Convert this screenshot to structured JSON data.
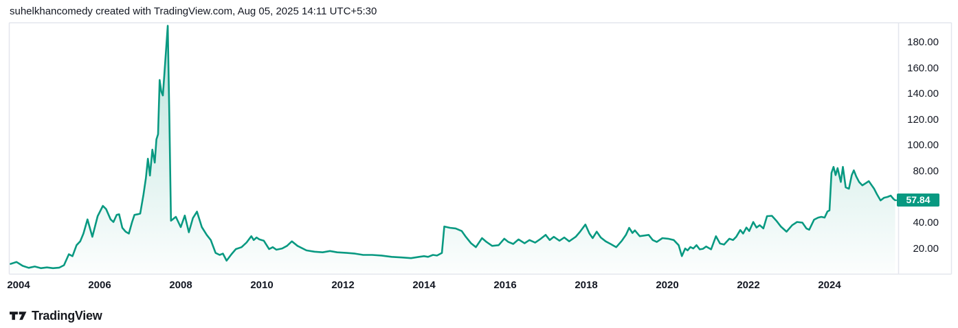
{
  "header": {
    "attribution": "suhelkhancomedy created with TradingView.com, Aug 05, 2025 14:11 UTC+5:30"
  },
  "footer": {
    "brand": "TradingView"
  },
  "chart_data": {
    "type": "area",
    "title": "",
    "xlabel": "",
    "ylabel": "",
    "grid": false,
    "legend_position": "none",
    "xlim": [
      2003.78,
      2025.73
    ],
    "ylim": [
      0,
      195
    ],
    "last_price": 57.84,
    "last_price_label": "57.84",
    "colors": {
      "line": "#089981",
      "badge": "#089981",
      "badge_text": "#ffffff",
      "area_top": "rgba(8,153,129,0.28)",
      "area_bottom": "rgba(8,153,129,0.01)",
      "text": "#131722",
      "border": "#e3e6ed"
    },
    "y_axis": {
      "ticks": [
        {
          "value": 180,
          "label": "180.00"
        },
        {
          "value": 160,
          "label": "160.00"
        },
        {
          "value": 140,
          "label": "140.00"
        },
        {
          "value": 120,
          "label": "120.00"
        },
        {
          "value": 100,
          "label": "100.00"
        },
        {
          "value": 80,
          "label": "80.00"
        },
        {
          "value": 40,
          "label": "40.00"
        },
        {
          "value": 20,
          "label": "20.00"
        }
      ]
    },
    "x_axis": {
      "ticks": [
        "2004",
        "2006",
        "2008",
        "2010",
        "2012",
        "2014",
        "2016",
        "2018",
        "2020",
        "2022",
        "2024"
      ]
    },
    "series": [
      {
        "name": "price",
        "points": [
          [
            2003.8,
            8.5
          ],
          [
            2003.95,
            10
          ],
          [
            2004.1,
            7
          ],
          [
            2004.25,
            5.5
          ],
          [
            2004.4,
            6.5
          ],
          [
            2004.55,
            5.2
          ],
          [
            2004.7,
            5.8
          ],
          [
            2004.85,
            5.2
          ],
          [
            2005.0,
            5.6
          ],
          [
            2005.12,
            7.5
          ],
          [
            2005.24,
            16
          ],
          [
            2005.33,
            14.5
          ],
          [
            2005.43,
            23
          ],
          [
            2005.52,
            26
          ],
          [
            2005.6,
            32
          ],
          [
            2005.7,
            43
          ],
          [
            2005.82,
            29.5
          ],
          [
            2005.95,
            45.5
          ],
          [
            2006.08,
            53.5
          ],
          [
            2006.16,
            51
          ],
          [
            2006.27,
            43
          ],
          [
            2006.34,
            41
          ],
          [
            2006.42,
            46.5
          ],
          [
            2006.48,
            47
          ],
          [
            2006.56,
            36.5
          ],
          [
            2006.64,
            33.5
          ],
          [
            2006.72,
            32
          ],
          [
            2006.8,
            41
          ],
          [
            2006.86,
            46.5
          ],
          [
            2006.94,
            47
          ],
          [
            2007.0,
            47.5
          ],
          [
            2007.08,
            62
          ],
          [
            2007.14,
            75
          ],
          [
            2007.19,
            90
          ],
          [
            2007.24,
            77
          ],
          [
            2007.3,
            97
          ],
          [
            2007.36,
            87
          ],
          [
            2007.4,
            105
          ],
          [
            2007.44,
            109
          ],
          [
            2007.48,
            151
          ],
          [
            2007.52,
            142
          ],
          [
            2007.56,
            139
          ],
          [
            2007.68,
            193
          ],
          [
            2007.72,
            120
          ],
          [
            2007.76,
            42
          ],
          [
            2007.88,
            45
          ],
          [
            2008.0,
            37
          ],
          [
            2008.1,
            46
          ],
          [
            2008.2,
            33
          ],
          [
            2008.3,
            44
          ],
          [
            2008.4,
            49
          ],
          [
            2008.52,
            37
          ],
          [
            2008.64,
            31
          ],
          [
            2008.74,
            27
          ],
          [
            2008.86,
            17
          ],
          [
            2008.96,
            15.5
          ],
          [
            2009.04,
            16.5
          ],
          [
            2009.13,
            11
          ],
          [
            2009.25,
            16
          ],
          [
            2009.36,
            20
          ],
          [
            2009.5,
            21.5
          ],
          [
            2009.62,
            25
          ],
          [
            2009.74,
            30
          ],
          [
            2009.8,
            27
          ],
          [
            2009.87,
            29
          ],
          [
            2009.94,
            27.5
          ],
          [
            2010.05,
            26.5
          ],
          [
            2010.18,
            20
          ],
          [
            2010.27,
            21.5
          ],
          [
            2010.36,
            19.5
          ],
          [
            2010.5,
            20.5
          ],
          [
            2010.62,
            22.5
          ],
          [
            2010.74,
            26
          ],
          [
            2010.88,
            22.5
          ],
          [
            2011.1,
            19
          ],
          [
            2011.3,
            18
          ],
          [
            2011.5,
            17.5
          ],
          [
            2011.68,
            18.5
          ],
          [
            2011.86,
            17.5
          ],
          [
            2012.1,
            17
          ],
          [
            2012.3,
            16.5
          ],
          [
            2012.5,
            15.5
          ],
          [
            2012.72,
            15.5
          ],
          [
            2012.95,
            15
          ],
          [
            2013.2,
            14
          ],
          [
            2013.45,
            13.5
          ],
          [
            2013.68,
            13
          ],
          [
            2013.88,
            14
          ],
          [
            2014.0,
            14.5
          ],
          [
            2014.1,
            14
          ],
          [
            2014.22,
            15.5
          ],
          [
            2014.32,
            15
          ],
          [
            2014.44,
            17
          ],
          [
            2014.5,
            37.5
          ],
          [
            2014.64,
            36.5
          ],
          [
            2014.78,
            36
          ],
          [
            2014.93,
            34
          ],
          [
            2015.03,
            29.5
          ],
          [
            2015.16,
            24.5
          ],
          [
            2015.28,
            21.5
          ],
          [
            2015.43,
            28.5
          ],
          [
            2015.54,
            25.5
          ],
          [
            2015.68,
            22.5
          ],
          [
            2015.84,
            23
          ],
          [
            2015.98,
            28
          ],
          [
            2016.08,
            25.5
          ],
          [
            2016.2,
            24
          ],
          [
            2016.33,
            27.5
          ],
          [
            2016.48,
            24.5
          ],
          [
            2016.6,
            27
          ],
          [
            2016.74,
            25
          ],
          [
            2016.88,
            28
          ],
          [
            2017.0,
            31
          ],
          [
            2017.1,
            27
          ],
          [
            2017.2,
            29.5
          ],
          [
            2017.34,
            26.5
          ],
          [
            2017.46,
            29
          ],
          [
            2017.58,
            26
          ],
          [
            2017.74,
            29.5
          ],
          [
            2017.85,
            33.5
          ],
          [
            2017.98,
            39
          ],
          [
            2018.08,
            32
          ],
          [
            2018.16,
            28.5
          ],
          [
            2018.26,
            33.5
          ],
          [
            2018.36,
            29
          ],
          [
            2018.48,
            26
          ],
          [
            2018.6,
            24
          ],
          [
            2018.74,
            21.5
          ],
          [
            2018.88,
            26.5
          ],
          [
            2018.98,
            31
          ],
          [
            2019.06,
            36.5
          ],
          [
            2019.14,
            32.5
          ],
          [
            2019.2,
            34.5
          ],
          [
            2019.32,
            30
          ],
          [
            2019.44,
            30.5
          ],
          [
            2019.54,
            31
          ],
          [
            2019.64,
            27
          ],
          [
            2019.74,
            25.5
          ],
          [
            2019.88,
            28.5
          ],
          [
            2020.02,
            28
          ],
          [
            2020.16,
            27
          ],
          [
            2020.28,
            23
          ],
          [
            2020.36,
            14.6
          ],
          [
            2020.44,
            20.5
          ],
          [
            2020.5,
            19
          ],
          [
            2020.57,
            21.6
          ],
          [
            2020.64,
            20.5
          ],
          [
            2020.72,
            23
          ],
          [
            2020.8,
            19.8
          ],
          [
            2020.88,
            20.2
          ],
          [
            2020.96,
            22
          ],
          [
            2021.08,
            19.8
          ],
          [
            2021.2,
            30
          ],
          [
            2021.3,
            24.3
          ],
          [
            2021.4,
            23.5
          ],
          [
            2021.53,
            28
          ],
          [
            2021.62,
            27
          ],
          [
            2021.7,
            29.5
          ],
          [
            2021.8,
            34.8
          ],
          [
            2021.87,
            32
          ],
          [
            2021.95,
            36.7
          ],
          [
            2022.02,
            34
          ],
          [
            2022.12,
            41
          ],
          [
            2022.2,
            36.7
          ],
          [
            2022.28,
            38.5
          ],
          [
            2022.37,
            36
          ],
          [
            2022.46,
            45.5
          ],
          [
            2022.58,
            45.8
          ],
          [
            2022.7,
            41.6
          ],
          [
            2022.8,
            37.5
          ],
          [
            2022.94,
            33.5
          ],
          [
            2023.08,
            38.5
          ],
          [
            2023.2,
            41
          ],
          [
            2023.33,
            40.5
          ],
          [
            2023.43,
            36
          ],
          [
            2023.5,
            35
          ],
          [
            2023.62,
            42.8
          ],
          [
            2023.72,
            44.4
          ],
          [
            2023.8,
            45
          ],
          [
            2023.88,
            44.4
          ],
          [
            2023.95,
            49.2
          ],
          [
            2024.0,
            50
          ],
          [
            2024.05,
            79
          ],
          [
            2024.1,
            83.7
          ],
          [
            2024.15,
            77.3
          ],
          [
            2024.2,
            82.7
          ],
          [
            2024.28,
            72
          ],
          [
            2024.33,
            83.7
          ],
          [
            2024.4,
            67.8
          ],
          [
            2024.48,
            66.8
          ],
          [
            2024.55,
            77.3
          ],
          [
            2024.6,
            81
          ],
          [
            2024.66,
            76.3
          ],
          [
            2024.73,
            72
          ],
          [
            2024.81,
            69.4
          ],
          [
            2024.89,
            71
          ],
          [
            2024.97,
            72.6
          ],
          [
            2025.1,
            66.8
          ],
          [
            2025.17,
            62.5
          ],
          [
            2025.26,
            57.7
          ],
          [
            2025.35,
            59.8
          ],
          [
            2025.43,
            60.4
          ],
          [
            2025.51,
            61.4
          ],
          [
            2025.58,
            58.8
          ],
          [
            2025.62,
            57.84
          ]
        ]
      }
    ]
  }
}
